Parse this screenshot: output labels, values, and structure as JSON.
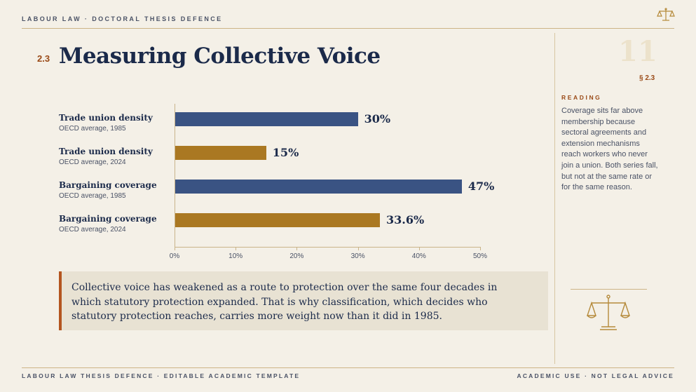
{
  "header": {
    "kicker": "LABOUR LAW · DOCTORAL THESIS DEFENCE",
    "section_number": "2.3",
    "title": "Measuring Collective Voice"
  },
  "chart_data": {
    "type": "bar",
    "orientation": "horizontal",
    "title": "",
    "xlabel": "",
    "ylabel": "",
    "categories": [
      {
        "label": "Trade union density",
        "sub": "OECD average, 1985",
        "value": 30,
        "value_label": "30%",
        "color": "#3a5383"
      },
      {
        "label": "Trade union density",
        "sub": "OECD average, 2024",
        "value": 15,
        "value_label": "15%",
        "color": "#aa7822"
      },
      {
        "label": "Bargaining coverage",
        "sub": "OECD average, 1985",
        "value": 47,
        "value_label": "47%",
        "color": "#3a5383"
      },
      {
        "label": "Bargaining coverage",
        "sub": "OECD average, 2024",
        "value": 33.6,
        "value_label": "33.6%",
        "color": "#aa7822"
      }
    ],
    "xlim": [
      0,
      50
    ],
    "ticks": [
      "0%",
      "10%",
      "20%",
      "30%",
      "40%",
      "50%"
    ],
    "grid": false,
    "legend": "none"
  },
  "callout": {
    "text": "Collective voice has weakened as a route to protection over the same four decades in which statutory protection expanded. That is why classification, which decides who statutory protection reaches, carries more weight now than it did in 1985."
  },
  "sidebar": {
    "page_number": "11",
    "section_ref": "§ 2.3",
    "reading_title": "READING",
    "reading_text": "Coverage sits far above membership because sectoral agreements and extension mechanisms reach workers who never join a union. Both series fall, but not at the same rate or for the same reason."
  },
  "footer": {
    "left": "LABOUR LAW THESIS DEFENCE · EDITABLE ACADEMIC TEMPLATE",
    "right": "ACADEMIC USE · NOT LEGAL ADVICE"
  },
  "icons": {
    "top": "scales-of-justice-icon",
    "sidebar": "scales-of-justice-icon"
  },
  "colors": {
    "navy": "#1b2a4a",
    "accent": "#9a4a17",
    "bar_1985": "#3a5383",
    "bar_2024": "#aa7822",
    "background": "#f4f0e7"
  }
}
